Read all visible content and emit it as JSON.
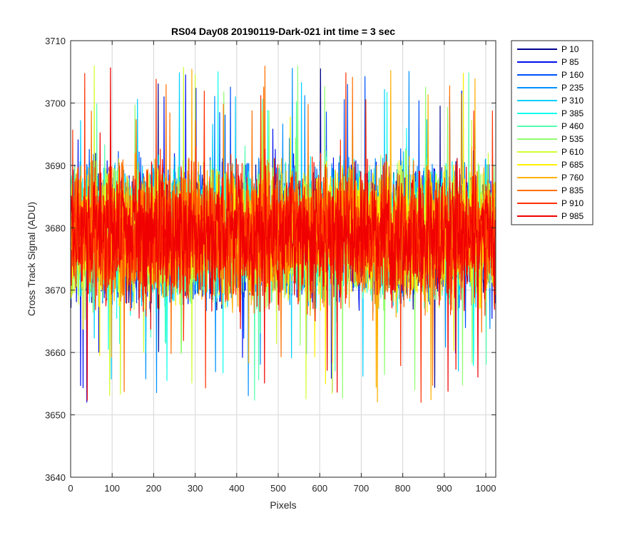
{
  "chart_data": {
    "type": "line",
    "title": "RS04 Day08 20190119-Dark-021 int time = 3 sec",
    "xlabel": "Pixels",
    "ylabel": "Cross Track Signal (ADU)",
    "xlim": [
      0,
      1024
    ],
    "ylim": [
      3640,
      3710
    ],
    "xticks": [
      0,
      100,
      200,
      300,
      400,
      500,
      600,
      700,
      800,
      900,
      1000
    ],
    "yticks": [
      3640,
      3650,
      3660,
      3670,
      3680,
      3690,
      3700,
      3710
    ],
    "grid": true,
    "legend_position": "outside-top-right",
    "noise_model": {
      "mean": 3679,
      "typical_range": [
        3664,
        3694
      ],
      "observed_min": 3648,
      "observed_max": 3709
    },
    "series": [
      {
        "name": "P 10",
        "color": "#00008f"
      },
      {
        "name": "P 85",
        "color": "#0010ef"
      },
      {
        "name": "P 160",
        "color": "#0050ff"
      },
      {
        "name": "P 235",
        "color": "#0090ff"
      },
      {
        "name": "P 310",
        "color": "#00cfff"
      },
      {
        "name": "P 385",
        "color": "#10ffef"
      },
      {
        "name": "P 460",
        "color": "#50ffaf"
      },
      {
        "name": "P 535",
        "color": "#90ff6f"
      },
      {
        "name": "P 610",
        "color": "#cfff30"
      },
      {
        "name": "P 685",
        "color": "#ffef00"
      },
      {
        "name": "P 760",
        "color": "#ffaf00"
      },
      {
        "name": "P 835",
        "color": "#ff7000"
      },
      {
        "name": "P 910",
        "color": "#ff3000"
      },
      {
        "name": "P 985",
        "color": "#f00000"
      }
    ]
  }
}
